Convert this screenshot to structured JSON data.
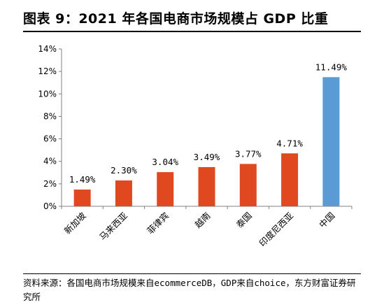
{
  "title": "图表 9：2021 年各国电商市场规模占 GDP 比重",
  "source": "资料来源：各国电商市场规模来自ecommerceDB，GDP来自choice，东方财富证券研究所",
  "colors": {
    "default_bar": "#E0491F",
    "highlight_bar": "#5B9BD5",
    "axis": "#808080"
  },
  "chart_data": {
    "type": "bar",
    "categories": [
      "新加坡",
      "马来西亚",
      "菲律宾",
      "越南",
      "泰国",
      "印度尼西亚",
      "中国"
    ],
    "values": [
      1.49,
      2.3,
      3.04,
      3.49,
      3.77,
      4.71,
      11.49
    ],
    "data_labels": [
      "1.49%",
      "2.30%",
      "3.04%",
      "3.49%",
      "3.77%",
      "4.71%",
      "11.49%"
    ],
    "highlight_index": 6,
    "ylim": [
      0,
      14
    ],
    "yticks": [
      "0%",
      "2%",
      "4%",
      "6%",
      "8%",
      "10%",
      "12%",
      "14%"
    ],
    "ytick_values": [
      0,
      2,
      4,
      6,
      8,
      10,
      12,
      14
    ],
    "grid": false,
    "legend": "none"
  }
}
